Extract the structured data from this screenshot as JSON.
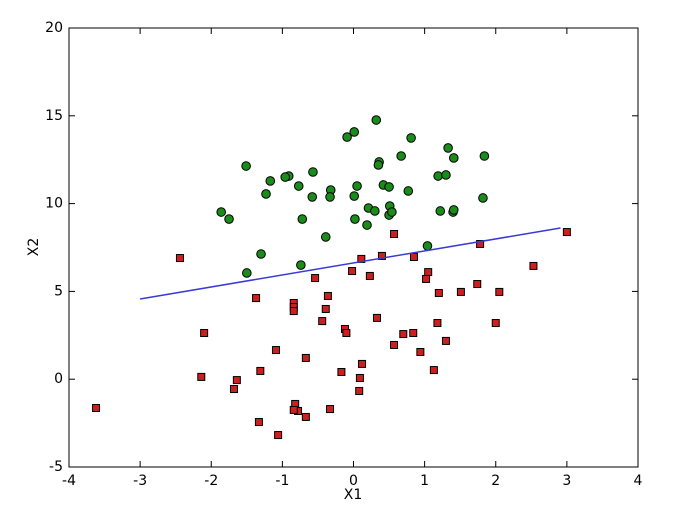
{
  "chart_data": {
    "type": "scatter",
    "xlabel": "X1",
    "ylabel": "X2",
    "xlim": [
      -4,
      4
    ],
    "ylim": [
      -5,
      20
    ],
    "xticks": [
      -4,
      -3,
      -2,
      -1,
      0,
      1,
      2,
      3,
      4
    ],
    "yticks": [
      -5,
      0,
      5,
      10,
      15,
      20
    ],
    "series": [
      {
        "type": "scatter",
        "marker": "circle",
        "color": "#1a8c1a",
        "x": [
          0.32,
          1.33,
          0.01,
          -0.09,
          0.81,
          -1.51,
          0.36,
          0.35,
          0.67,
          1.41,
          1.84,
          -1.17,
          -0.91,
          -0.96,
          -0.57,
          1.19,
          1.3,
          -0.32,
          0.05,
          -0.77,
          0.42,
          0.5,
          0.77,
          -1.23,
          -0.33,
          -0.58,
          1.82,
          0.01,
          -1.86,
          -1.75,
          -0.72,
          0.21,
          0.51,
          0.3,
          0.5,
          1.22,
          1.4,
          1.41,
          0.54,
          0.02,
          0.19,
          -0.39,
          -1.3,
          1.04,
          -0.74,
          -1.5
        ],
        "values": [
          14.76,
          13.17,
          14.08,
          13.79,
          13.74,
          12.14,
          12.37,
          12.2,
          12.71,
          12.6,
          12.71,
          11.29,
          11.57,
          11.51,
          11.8,
          11.57,
          11.63,
          10.77,
          11.0,
          11.0,
          11.06,
          10.95,
          10.72,
          10.55,
          10.38,
          10.38,
          10.32,
          10.43,
          9.52,
          9.12,
          9.12,
          9.75,
          9.86,
          9.58,
          9.35,
          9.58,
          9.52,
          9.64,
          9.52,
          9.12,
          8.78,
          8.1,
          7.13,
          7.59,
          6.5,
          6.05
        ]
      },
      {
        "type": "scatter",
        "marker": "square",
        "color": "#cc2020",
        "x": [
          -3.62,
          -2.44,
          3.0,
          2.53,
          0.57,
          1.78,
          0.11,
          0.85,
          1.05,
          1.02,
          0.4,
          -0.02,
          0.23,
          -0.54,
          -1.37,
          -0.84,
          -0.84,
          -0.84,
          -0.36,
          -0.39,
          -0.44,
          1.74,
          1.51,
          2.05,
          1.2,
          2.0,
          -2.1,
          -0.12,
          0.33,
          0.7,
          0.84,
          0.57,
          -0.1,
          1.18,
          1.3,
          0.94,
          -1.09,
          -0.67,
          0.12,
          1.13,
          -0.17,
          -1.31,
          -2.14,
          -1.64,
          -1.68,
          0.09,
          0.08,
          -0.82,
          -0.78,
          -0.33,
          -0.84,
          -0.67,
          -1.33,
          -1.06
        ],
        "values": [
          -1.64,
          6.9,
          8.38,
          6.45,
          8.27,
          7.7,
          6.85,
          6.96,
          6.1,
          5.71,
          7.02,
          6.16,
          5.88,
          5.76,
          4.62,
          4.34,
          4.11,
          3.88,
          4.74,
          4.0,
          3.31,
          5.42,
          4.97,
          4.97,
          4.91,
          3.2,
          2.63,
          2.86,
          3.49,
          2.57,
          2.63,
          1.95,
          2.63,
          3.2,
          2.18,
          1.55,
          1.66,
          1.21,
          0.87,
          0.52,
          0.41,
          0.47,
          0.13,
          -0.05,
          -0.56,
          0.07,
          -0.67,
          -1.41,
          -1.81,
          -1.7,
          -1.75,
          -2.15,
          -2.44,
          -3.18
        ]
      },
      {
        "type": "line",
        "color": "#3a3ad6",
        "x": [
          -3,
          2.91
        ],
        "values": [
          4.57,
          8.61
        ]
      }
    ]
  }
}
